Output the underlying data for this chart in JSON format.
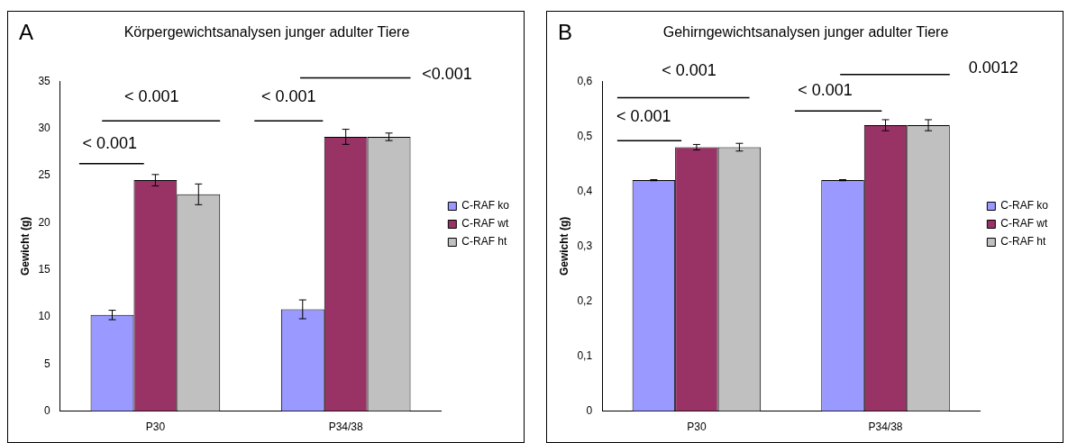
{
  "chart_data": [
    {
      "type": "bar",
      "title": "Körpergewichtsanalysen junger adulter Tiere",
      "ylabel": "Gewicht (g)",
      "categories": [
        "P30",
        "P34/38"
      ],
      "series": [
        {
          "name": "C-RAF ko",
          "color": "#9999ff",
          "values": [
            10.2,
            10.8
          ],
          "errors": [
            0.5,
            1.0
          ]
        },
        {
          "name": "C-RAF wt",
          "color": "#993366",
          "values": [
            24.5,
            29.1
          ],
          "errors": [
            0.6,
            0.8
          ]
        },
        {
          "name": "C-RAF ht",
          "color": "#c0c0c0",
          "values": [
            23.0,
            29.1
          ],
          "errors": [
            1.1,
            0.4
          ]
        }
      ],
      "ylim": [
        0,
        35
      ],
      "yticks": [
        0,
        5,
        10,
        15,
        20,
        25,
        30,
        35
      ],
      "grid": false,
      "legend": "right",
      "annotations": [
        "A",
        "< 0.001",
        "< 0.001",
        "< 0.001",
        "<0.001"
      ]
    },
    {
      "type": "bar",
      "title": "Gehirngewichtsanalysen junger adulter Tiere",
      "ylabel": "Gewicht (g)",
      "categories": [
        "P30",
        "P34/38"
      ],
      "series": [
        {
          "name": "C-RAF ko",
          "color": "#9999ff",
          "values": [
            0.42,
            0.42
          ],
          "errors": [
            0.001,
            0.001
          ]
        },
        {
          "name": "C-RAF wt",
          "color": "#993366",
          "values": [
            0.48,
            0.52
          ],
          "errors": [
            0.005,
            0.01
          ]
        },
        {
          "name": "C-RAF ht",
          "color": "#c0c0c0",
          "values": [
            0.48,
            0.52
          ],
          "errors": [
            0.007,
            0.01
          ]
        }
      ],
      "ylim": [
        0,
        0.6
      ],
      "yticks": [
        0,
        {
          "value": 0.1,
          "label": "0,1"
        },
        {
          "value": 0.2,
          "label": "0,2"
        },
        {
          "value": 0.3,
          "label": "0,3"
        },
        {
          "value": 0.4,
          "label": "0,4"
        },
        {
          "value": 0.5,
          "label": "0,5"
        },
        {
          "value": 0.6,
          "label": "0,6"
        }
      ],
      "grid": false,
      "legend": "right",
      "annotations": [
        "B",
        "< 0.001",
        "< 0.001",
        "< 0.001",
        "0.0012"
      ]
    }
  ]
}
